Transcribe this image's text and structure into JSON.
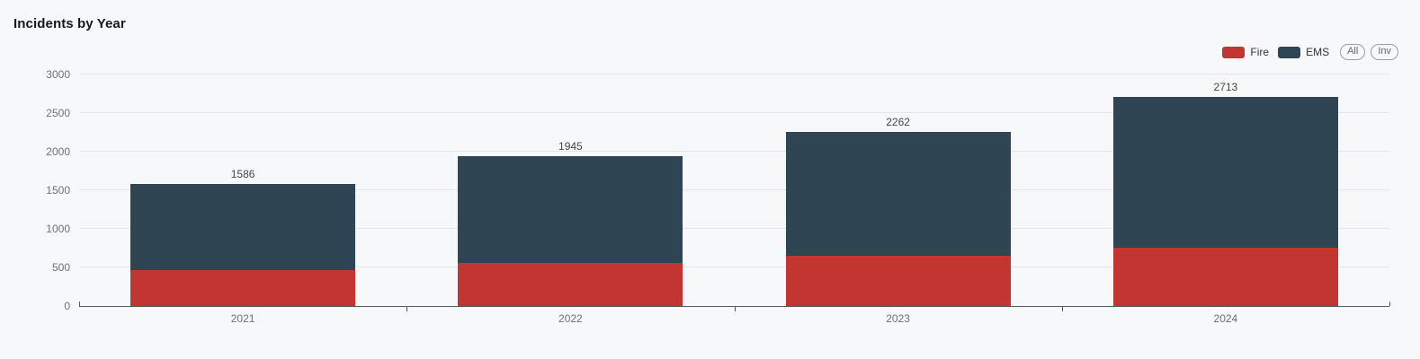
{
  "header": {
    "title": "Incidents by Year"
  },
  "legend": {
    "items": [
      {
        "label": "Fire",
        "color": "#c23531"
      },
      {
        "label": "EMS",
        "color": "#2f4554"
      }
    ],
    "selector": [
      {
        "label": "All"
      },
      {
        "label": "Inv"
      }
    ]
  },
  "chart_data": {
    "type": "bar",
    "stacked": true,
    "title": "Incidents by Year",
    "categories": [
      "2021",
      "2022",
      "2023",
      "2024"
    ],
    "series": [
      {
        "name": "Fire",
        "color": "#c23531",
        "values": [
          460,
          555,
          655,
          760
        ]
      },
      {
        "name": "EMS",
        "color": "#2f4554",
        "values": [
          1126,
          1390,
          1607,
          1953
        ]
      }
    ],
    "totals": [
      1586,
      1945,
      2262,
      2713
    ],
    "ylim": [
      0,
      3000
    ],
    "yticks": [
      0,
      500,
      1000,
      1500,
      2000,
      2500,
      3000
    ],
    "xlabel": "",
    "ylabel": "",
    "grid": true,
    "legend_position": "top-right",
    "legend_selector": [
      "All",
      "Inv"
    ]
  },
  "colors": {
    "background": "#f7f8fa",
    "grid_line": "#e2e4ee",
    "axis_line": "#55585e",
    "axis_label": "#6e7079",
    "value_label": "#464646",
    "title_text": "#16181d",
    "legend_text": "#333333",
    "selector_border": "#9a9fa6",
    "selector_text": "#666666"
  }
}
